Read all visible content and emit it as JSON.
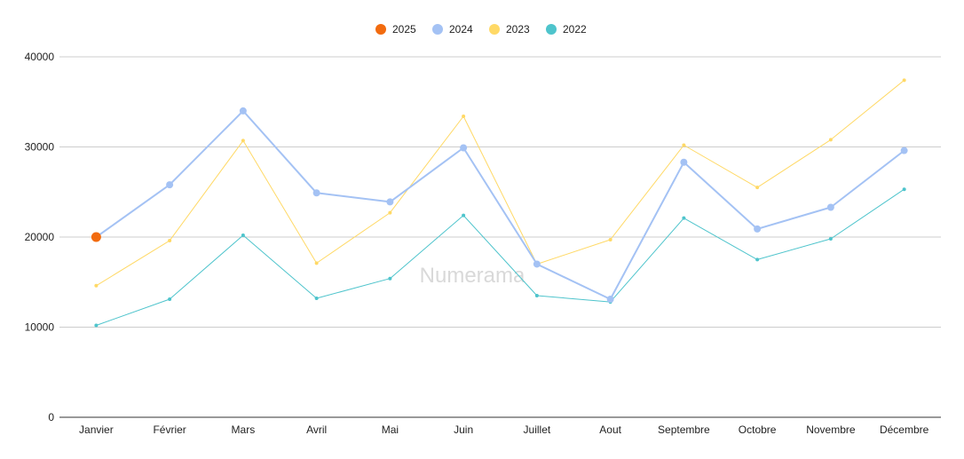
{
  "chart_data": {
    "type": "line",
    "categories": [
      "Janvier",
      "Février",
      "Mars",
      "Avril",
      "Mai",
      "Juin",
      "Juillet",
      "Aout",
      "Septembre",
      "Octobre",
      "Novembre",
      "Décembre"
    ],
    "series": [
      {
        "name": "2025",
        "color": "#f26b0f",
        "values": [
          20000,
          null,
          null,
          null,
          null,
          null,
          null,
          null,
          null,
          null,
          null,
          null
        ]
      },
      {
        "name": "2024",
        "color": "#a4c2f4",
        "values": [
          20000,
          25800,
          34000,
          24900,
          23900,
          29900,
          17000,
          13100,
          28300,
          20900,
          23300,
          29600
        ]
      },
      {
        "name": "2023",
        "color": "#ffd966",
        "values": [
          14600,
          19600,
          30700,
          17100,
          22700,
          33400,
          17000,
          19700,
          30200,
          25500,
          30800,
          37400
        ]
      },
      {
        "name": "2022",
        "color": "#4ec4cc",
        "values": [
          10200,
          13100,
          20200,
          13200,
          15400,
          22400,
          13500,
          12800,
          22100,
          17500,
          19800,
          25300
        ]
      }
    ],
    "yticks": [
      0,
      10000,
      20000,
      30000,
      40000
    ],
    "ylim": [
      0,
      40000
    ],
    "grid": true,
    "legend_position": "top-center",
    "watermark": "Numerama"
  }
}
